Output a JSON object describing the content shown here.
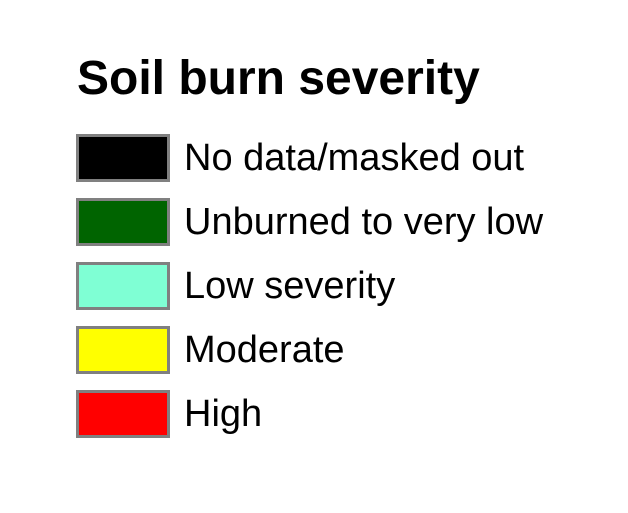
{
  "page": {
    "background_color": "#ffffff"
  },
  "legend": {
    "title": "Soil burn severity",
    "title_color": "#000000",
    "swatch_border_color": "#808080",
    "items": [
      {
        "label": "No data/masked out",
        "color": "#000000"
      },
      {
        "label": "Unburned to very low",
        "color": "#006400"
      },
      {
        "label": "Low severity",
        "color": "#7FFFD4"
      },
      {
        "label": "Moderate",
        "color": "#FFFF00"
      },
      {
        "label": "High",
        "color": "#FF0000"
      }
    ]
  },
  "chart_data": {
    "type": "table",
    "title": "Soil burn severity",
    "legend_position": "top-left",
    "categories": [
      "No data/masked out",
      "Unburned to very low",
      "Low severity",
      "Moderate",
      "High"
    ],
    "colors": [
      "#000000",
      "#006400",
      "#7FFFD4",
      "#FFFF00",
      "#FF0000"
    ]
  }
}
